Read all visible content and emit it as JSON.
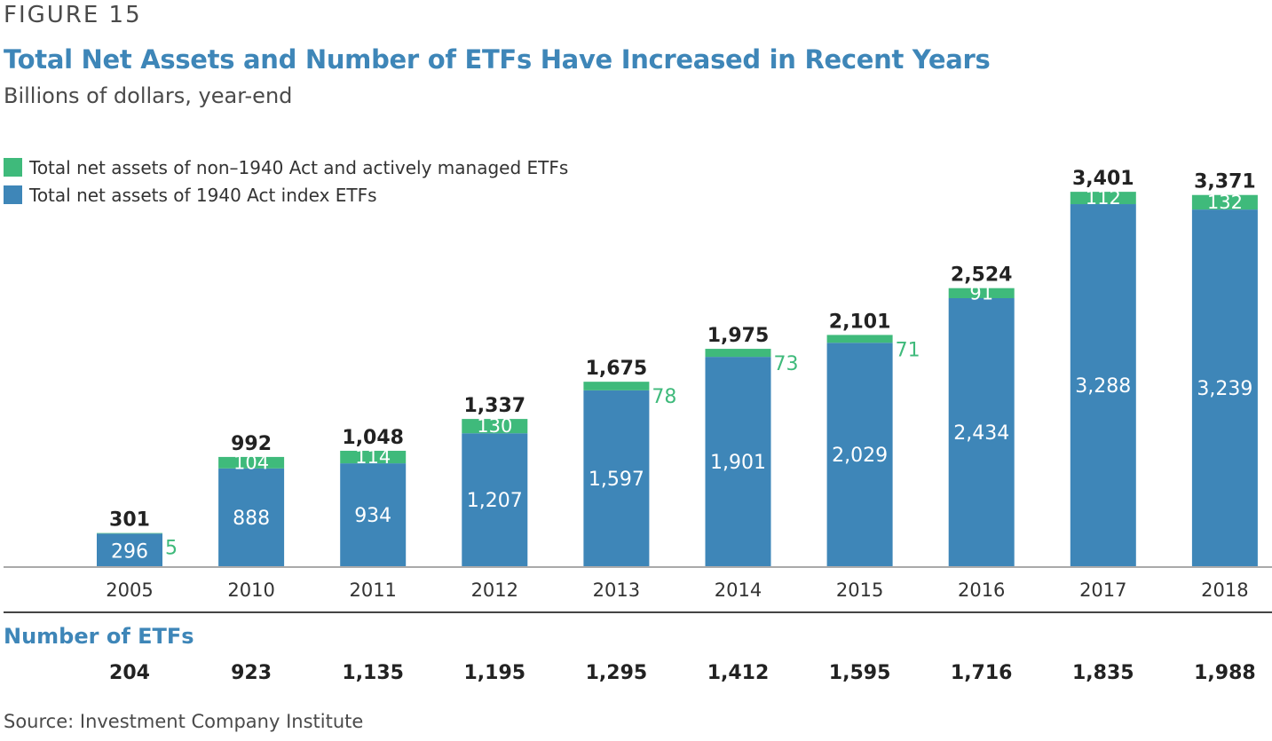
{
  "figure_label": "FIGURE 15",
  "chart_data": {
    "type": "bar",
    "stacked": true,
    "title": "Total Net Assets and Number of ETFs Have Increased in Recent Years",
    "subtitle": "Billions of dollars, year-end",
    "categories": [
      "2005",
      "2010",
      "2011",
      "2012",
      "2013",
      "2014",
      "2015",
      "2016",
      "2017",
      "2018"
    ],
    "series": [
      {
        "name": "Total net assets of 1940 Act index ETFs",
        "color": "#3e86b8",
        "values": [
          296,
          888,
          934,
          1207,
          1597,
          1901,
          2029,
          2434,
          3288,
          3239
        ],
        "labels": [
          "296",
          "888",
          "934",
          "1,207",
          "1,597",
          "1,901",
          "2,029",
          "2,434",
          "3,288",
          "3,239"
        ]
      },
      {
        "name": "Total net assets of non–1940 Act and actively managed ETFs",
        "color": "#3fba7b",
        "values": [
          5,
          104,
          114,
          130,
          78,
          73,
          71,
          91,
          112,
          132
        ],
        "labels": [
          "5",
          "104",
          "114",
          "130",
          "78",
          "73",
          "71",
          "91",
          "112",
          "132"
        ]
      }
    ],
    "totals": [
      "301",
      "992",
      "1,048",
      "1,337",
      "1,675",
      "1,975",
      "2,101",
      "2,524",
      "3,401",
      "3,371"
    ],
    "ylim": [
      0,
      3600
    ],
    "legend_position": "top-left",
    "grid": false,
    "number_of_etfs": {
      "label": "Number of ETFs",
      "values": [
        "204",
        "923",
        "1,135",
        "1,195",
        "1,295",
        "1,412",
        "1,595",
        "1,716",
        "1,835",
        "1,988"
      ]
    }
  },
  "source": "Source: Investment Company Institute"
}
